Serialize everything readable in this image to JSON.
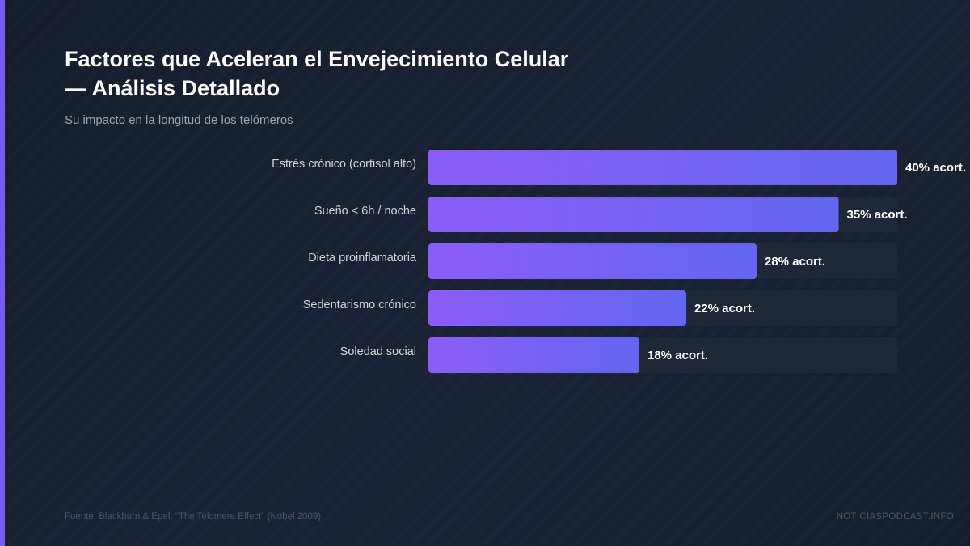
{
  "title": "Factores que Aceleran el Envejecimiento Celular — Análisis Detallado",
  "subtitle": "Su impacto en la longitud de los telómeros",
  "footer": {
    "source": "Fuente: Blackburn & Epel, \"The Telomere Effect\" (Nobel 2009)",
    "brand": "NOTICIASPODCAST.INFO"
  },
  "colors": {
    "background": "#1a2235",
    "accent": "#7c5cf0",
    "bar_start": "#8b5cf6",
    "bar_end": "#6366f1",
    "track": "#1f2739",
    "label": "#d1d5db",
    "value": "#ffffff"
  },
  "chart_data": {
    "type": "bar",
    "orientation": "horizontal",
    "categories": [
      "Estrés crónico (cortisol alto)",
      "Sueño < 6h / noche",
      "Dieta proinflamatoria",
      "Sedentarismo crónico",
      "Soledad social"
    ],
    "values": [
      40,
      35,
      28,
      22,
      18
    ],
    "value_labels": [
      "40% acort.",
      "35% acort.",
      "28% acort.",
      "22% acort.",
      "18% acort."
    ],
    "xlim": [
      0,
      40
    ],
    "grid": false,
    "legend": "none"
  }
}
